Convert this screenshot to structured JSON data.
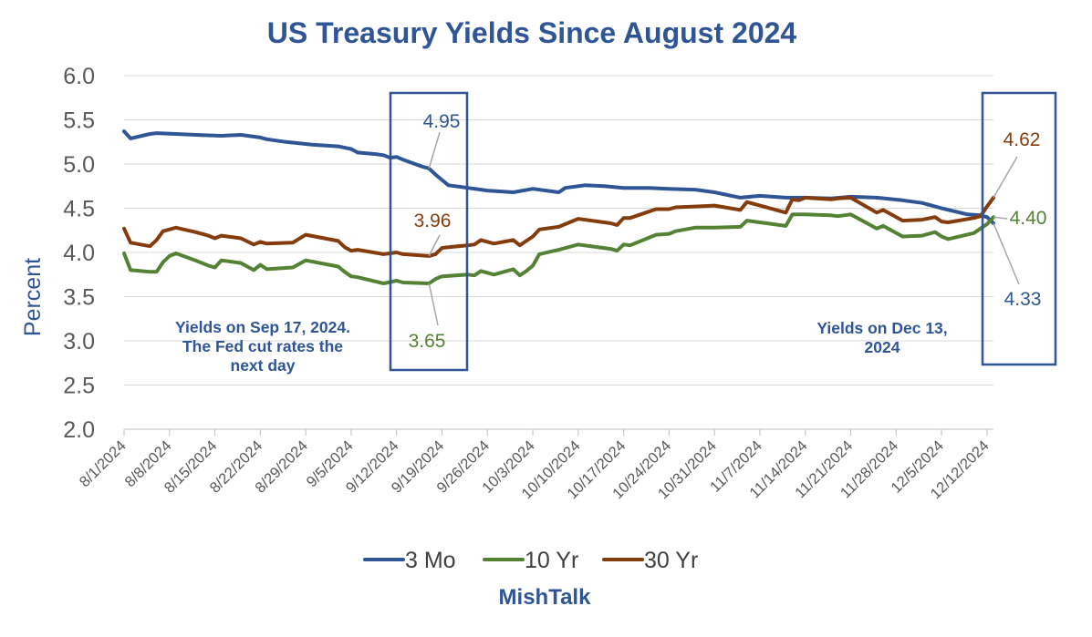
{
  "chart_data": {
    "type": "line",
    "title": "US Treasury Yields Since August 2024",
    "ylabel": "Percent",
    "xlabel": "",
    "ylim": [
      2.0,
      6.0
    ],
    "yticks": [
      "2.0",
      "2.5",
      "3.0",
      "3.5",
      "4.0",
      "4.5",
      "5.0",
      "5.5",
      "6.0"
    ],
    "x_range": [
      "2024-08-01",
      "2024-12-13"
    ],
    "xtick_labels": [
      "8/1/2024",
      "8/8/2024",
      "8/15/2024",
      "8/22/2024",
      "8/29/2024",
      "9/5/2024",
      "9/12/2024",
      "9/19/2024",
      "9/26/2024",
      "10/3/2024",
      "10/10/2024",
      "10/17/2024",
      "10/24/2024",
      "10/31/2024",
      "11/7/2024",
      "11/14/2024",
      "11/21/2024",
      "11/28/2024",
      "12/5/2024",
      "12/12/2024"
    ],
    "grid": true,
    "legend_position": "bottom",
    "series": [
      {
        "name": "3 Mo",
        "color": "#2F5597",
        "points": [
          [
            "2024-08-01",
            5.37
          ],
          [
            "2024-08-02",
            5.29
          ],
          [
            "2024-08-05",
            5.34
          ],
          [
            "2024-08-06",
            5.35
          ],
          [
            "2024-08-09",
            5.34
          ],
          [
            "2024-08-12",
            5.33
          ],
          [
            "2024-08-16",
            5.32
          ],
          [
            "2024-08-19",
            5.33
          ],
          [
            "2024-08-22",
            5.3
          ],
          [
            "2024-08-23",
            5.28
          ],
          [
            "2024-08-26",
            5.25
          ],
          [
            "2024-08-30",
            5.22
          ],
          [
            "2024-09-03",
            5.2
          ],
          [
            "2024-09-05",
            5.17
          ],
          [
            "2024-09-06",
            5.13
          ],
          [
            "2024-09-09",
            5.11
          ],
          [
            "2024-09-10",
            5.1
          ],
          [
            "2024-09-11",
            5.07
          ],
          [
            "2024-09-12",
            5.08
          ],
          [
            "2024-09-13",
            5.05
          ],
          [
            "2024-09-16",
            4.97
          ],
          [
            "2024-09-17",
            4.95
          ],
          [
            "2024-09-18",
            4.88
          ],
          [
            "2024-09-19",
            4.82
          ],
          [
            "2024-09-20",
            4.76
          ],
          [
            "2024-09-23",
            4.73
          ],
          [
            "2024-09-26",
            4.7
          ],
          [
            "2024-09-30",
            4.68
          ],
          [
            "2024-10-03",
            4.72
          ],
          [
            "2024-10-07",
            4.68
          ],
          [
            "2024-10-08",
            4.73
          ],
          [
            "2024-10-11",
            4.76
          ],
          [
            "2024-10-14",
            4.75
          ],
          [
            "2024-10-17",
            4.73
          ],
          [
            "2024-10-21",
            4.73
          ],
          [
            "2024-10-24",
            4.72
          ],
          [
            "2024-10-28",
            4.71
          ],
          [
            "2024-10-31",
            4.68
          ],
          [
            "2024-11-04",
            4.62
          ],
          [
            "2024-11-07",
            4.64
          ],
          [
            "2024-11-11",
            4.62
          ],
          [
            "2024-11-14",
            4.62
          ],
          [
            "2024-11-18",
            4.61
          ],
          [
            "2024-11-21",
            4.63
          ],
          [
            "2024-11-25",
            4.62
          ],
          [
            "2024-11-29",
            4.59
          ],
          [
            "2024-12-02",
            4.56
          ],
          [
            "2024-12-05",
            4.5
          ],
          [
            "2024-12-09",
            4.43
          ],
          [
            "2024-12-11",
            4.42
          ],
          [
            "2024-12-12",
            4.4
          ],
          [
            "2024-12-13",
            4.33
          ]
        ]
      },
      {
        "name": "10 Yr",
        "color": "#548235",
        "points": [
          [
            "2024-08-01",
            3.99
          ],
          [
            "2024-08-02",
            3.8
          ],
          [
            "2024-08-05",
            3.78
          ],
          [
            "2024-08-06",
            3.78
          ],
          [
            "2024-08-07",
            3.89
          ],
          [
            "2024-08-08",
            3.96
          ],
          [
            "2024-08-09",
            3.99
          ],
          [
            "2024-08-12",
            3.91
          ],
          [
            "2024-08-14",
            3.85
          ],
          [
            "2024-08-15",
            3.83
          ],
          [
            "2024-08-16",
            3.91
          ],
          [
            "2024-08-19",
            3.88
          ],
          [
            "2024-08-21",
            3.8
          ],
          [
            "2024-08-22",
            3.86
          ],
          [
            "2024-08-23",
            3.81
          ],
          [
            "2024-08-27",
            3.83
          ],
          [
            "2024-08-29",
            3.91
          ],
          [
            "2024-09-03",
            3.84
          ],
          [
            "2024-09-04",
            3.78
          ],
          [
            "2024-09-05",
            3.73
          ],
          [
            "2024-09-06",
            3.72
          ],
          [
            "2024-09-10",
            3.65
          ],
          [
            "2024-09-12",
            3.68
          ],
          [
            "2024-09-13",
            3.66
          ],
          [
            "2024-09-17",
            3.65
          ],
          [
            "2024-09-18",
            3.7
          ],
          [
            "2024-09-19",
            3.73
          ],
          [
            "2024-09-23",
            3.75
          ],
          [
            "2024-09-24",
            3.74
          ],
          [
            "2024-09-25",
            3.79
          ],
          [
            "2024-09-27",
            3.75
          ],
          [
            "2024-09-30",
            3.81
          ],
          [
            "2024-10-01",
            3.74
          ],
          [
            "2024-10-02",
            3.79
          ],
          [
            "2024-10-03",
            3.85
          ],
          [
            "2024-10-04",
            3.98
          ],
          [
            "2024-10-07",
            4.03
          ],
          [
            "2024-10-10",
            4.09
          ],
          [
            "2024-10-15",
            4.04
          ],
          [
            "2024-10-16",
            4.02
          ],
          [
            "2024-10-17",
            4.09
          ],
          [
            "2024-10-18",
            4.08
          ],
          [
            "2024-10-22",
            4.2
          ],
          [
            "2024-10-24",
            4.21
          ],
          [
            "2024-10-25",
            4.24
          ],
          [
            "2024-10-28",
            4.28
          ],
          [
            "2024-10-31",
            4.28
          ],
          [
            "2024-11-04",
            4.29
          ],
          [
            "2024-11-05",
            4.36
          ],
          [
            "2024-11-07",
            4.34
          ],
          [
            "2024-11-11",
            4.3
          ],
          [
            "2024-11-12",
            4.43
          ],
          [
            "2024-11-13",
            4.43
          ],
          [
            "2024-11-14",
            4.43
          ],
          [
            "2024-11-18",
            4.42
          ],
          [
            "2024-11-19",
            4.41
          ],
          [
            "2024-11-21",
            4.43
          ],
          [
            "2024-11-25",
            4.27
          ],
          [
            "2024-11-26",
            4.3
          ],
          [
            "2024-11-29",
            4.18
          ],
          [
            "2024-12-02",
            4.19
          ],
          [
            "2024-12-04",
            4.23
          ],
          [
            "2024-12-05",
            4.18
          ],
          [
            "2024-12-06",
            4.15
          ],
          [
            "2024-12-10",
            4.22
          ],
          [
            "2024-12-11",
            4.27
          ],
          [
            "2024-12-12",
            4.32
          ],
          [
            "2024-12-13",
            4.4
          ]
        ]
      },
      {
        "name": "30 Yr",
        "color": "#843C0C",
        "points": [
          [
            "2024-08-01",
            4.27
          ],
          [
            "2024-08-02",
            4.11
          ],
          [
            "2024-08-05",
            4.07
          ],
          [
            "2024-08-06",
            4.14
          ],
          [
            "2024-08-07",
            4.24
          ],
          [
            "2024-08-09",
            4.28
          ],
          [
            "2024-08-12",
            4.23
          ],
          [
            "2024-08-14",
            4.19
          ],
          [
            "2024-08-15",
            4.16
          ],
          [
            "2024-08-16",
            4.19
          ],
          [
            "2024-08-19",
            4.16
          ],
          [
            "2024-08-21",
            4.09
          ],
          [
            "2024-08-22",
            4.12
          ],
          [
            "2024-08-23",
            4.1
          ],
          [
            "2024-08-27",
            4.11
          ],
          [
            "2024-08-29",
            4.2
          ],
          [
            "2024-09-03",
            4.13
          ],
          [
            "2024-09-04",
            4.06
          ],
          [
            "2024-09-05",
            4.02
          ],
          [
            "2024-09-06",
            4.03
          ],
          [
            "2024-09-10",
            3.98
          ],
          [
            "2024-09-12",
            4.0
          ],
          [
            "2024-09-13",
            3.98
          ],
          [
            "2024-09-17",
            3.96
          ],
          [
            "2024-09-18",
            3.98
          ],
          [
            "2024-09-19",
            4.05
          ],
          [
            "2024-09-20",
            4.06
          ],
          [
            "2024-09-23",
            4.08
          ],
          [
            "2024-09-24",
            4.09
          ],
          [
            "2024-09-25",
            4.14
          ],
          [
            "2024-09-27",
            4.1
          ],
          [
            "2024-09-30",
            4.14
          ],
          [
            "2024-10-01",
            4.08
          ],
          [
            "2024-10-02",
            4.13
          ],
          [
            "2024-10-03",
            4.18
          ],
          [
            "2024-10-04",
            4.26
          ],
          [
            "2024-10-07",
            4.29
          ],
          [
            "2024-10-10",
            4.38
          ],
          [
            "2024-10-15",
            4.33
          ],
          [
            "2024-10-16",
            4.31
          ],
          [
            "2024-10-17",
            4.39
          ],
          [
            "2024-10-18",
            4.39
          ],
          [
            "2024-10-22",
            4.49
          ],
          [
            "2024-10-24",
            4.49
          ],
          [
            "2024-10-25",
            4.51
          ],
          [
            "2024-10-28",
            4.52
          ],
          [
            "2024-10-31",
            4.53
          ],
          [
            "2024-11-04",
            4.48
          ],
          [
            "2024-11-05",
            4.57
          ],
          [
            "2024-11-07",
            4.53
          ],
          [
            "2024-11-11",
            4.45
          ],
          [
            "2024-11-12",
            4.6
          ],
          [
            "2024-11-13",
            4.59
          ],
          [
            "2024-11-14",
            4.62
          ],
          [
            "2024-11-18",
            4.6
          ],
          [
            "2024-11-19",
            4.61
          ],
          [
            "2024-11-21",
            4.62
          ],
          [
            "2024-11-25",
            4.45
          ],
          [
            "2024-11-26",
            4.48
          ],
          [
            "2024-11-29",
            4.36
          ],
          [
            "2024-12-02",
            4.37
          ],
          [
            "2024-12-04",
            4.4
          ],
          [
            "2024-12-05",
            4.35
          ],
          [
            "2024-12-06",
            4.34
          ],
          [
            "2024-12-10",
            4.39
          ],
          [
            "2024-12-11",
            4.41
          ],
          [
            "2024-12-12",
            4.52
          ],
          [
            "2024-12-13",
            4.62
          ]
        ]
      }
    ],
    "annotations": [
      {
        "id": "sep-3mo",
        "text": "4.95",
        "series": "3 Mo",
        "date": "2024-09-17",
        "value": 4.95
      },
      {
        "id": "sep-30yr",
        "text": "3.96",
        "series": "30 Yr",
        "date": "2024-09-17",
        "value": 3.96
      },
      {
        "id": "sep-10yr",
        "text": "3.65",
        "series": "10 Yr",
        "date": "2024-09-17",
        "value": 3.65
      },
      {
        "id": "dec-30yr",
        "text": "4.62",
        "series": "30 Yr",
        "date": "2024-12-13",
        "value": 4.62
      },
      {
        "id": "dec-10yr",
        "text": "4.40",
        "series": "10 Yr",
        "date": "2024-12-13",
        "value": 4.4
      },
      {
        "id": "dec-3mo",
        "text": "4.33",
        "series": "3 Mo",
        "date": "2024-12-13",
        "value": 4.33
      }
    ],
    "notes": [
      {
        "id": "sep",
        "lines": [
          "Yields on Sep 17, 2024.",
          "The Fed cut rates the",
          "next day"
        ]
      },
      {
        "id": "dec",
        "lines": [
          "Yields on Dec 13,",
          "2024"
        ]
      }
    ]
  },
  "credit": "MishTalk",
  "colors": {
    "title": "#2F5597",
    "axis_label": "#2F5597",
    "credit": "#2F5597",
    "note": "#2F5597",
    "highlight_box": "#2F5597",
    "grid": "#D9D9D9",
    "callout_leader": "#A6A6A6"
  }
}
